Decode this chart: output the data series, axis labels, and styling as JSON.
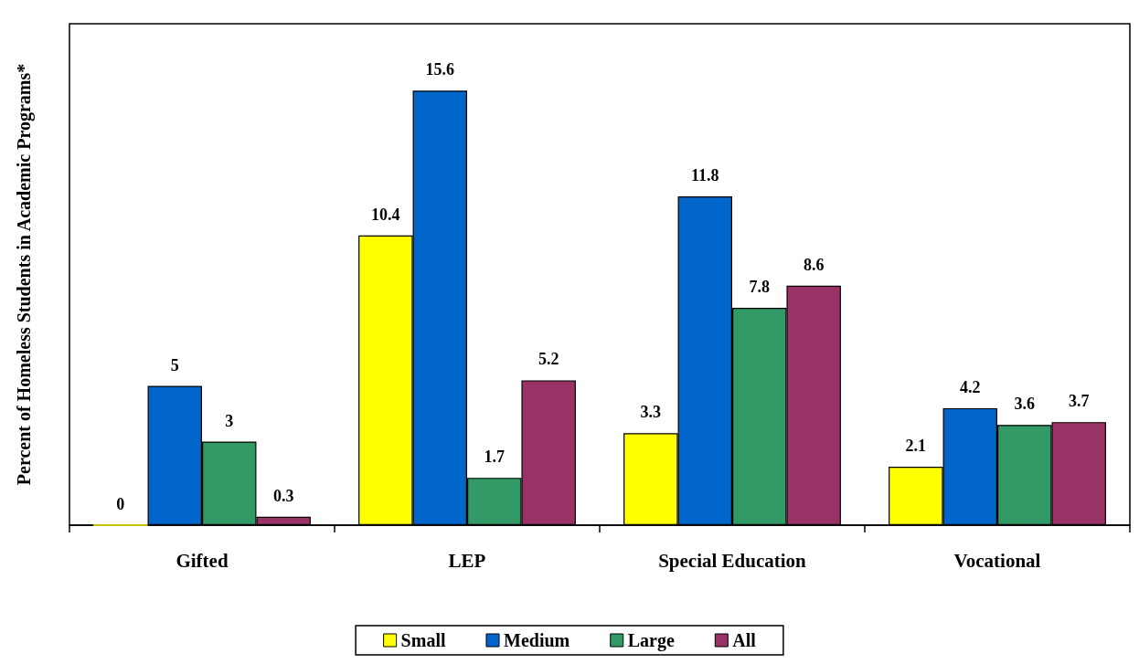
{
  "chart_data": {
    "type": "bar",
    "ylabel": "Percent of Homeless Students in Academic Programs*",
    "categories": [
      "Gifted",
      "LEP",
      "Special Education",
      "Vocational"
    ],
    "series": [
      {
        "name": "Small",
        "color": "#ffff00",
        "values": [
          0,
          10.4,
          3.3,
          2.1
        ]
      },
      {
        "name": "Medium",
        "color": "#0066cc",
        "values": [
          5,
          15.6,
          11.8,
          4.2
        ]
      },
      {
        "name": "Large",
        "color": "#339966",
        "values": [
          3,
          1.7,
          7.8,
          3.6
        ]
      },
      {
        "name": "All",
        "color": "#993366",
        "values": [
          0.3,
          5.2,
          8.6,
          3.7
        ]
      }
    ],
    "data_labels": true,
    "legend": "bottom",
    "grid": false,
    "tick_labels": "x"
  }
}
